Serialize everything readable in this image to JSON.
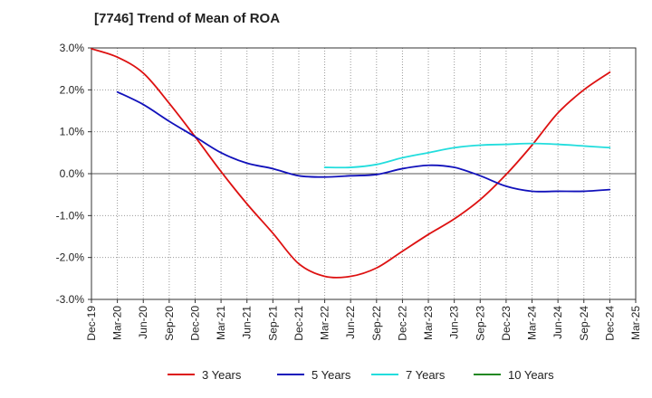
{
  "chart_data": {
    "type": "line",
    "title": "[7746]  Trend of Mean of ROA",
    "x": [
      "Dec-19",
      "Mar-20",
      "Jun-20",
      "Sep-20",
      "Dec-20",
      "Mar-21",
      "Jun-21",
      "Sep-21",
      "Dec-21",
      "Mar-22",
      "Jun-22",
      "Sep-22",
      "Dec-22",
      "Mar-23",
      "Jun-23",
      "Sep-23",
      "Dec-23",
      "Mar-24",
      "Jun-24",
      "Sep-24",
      "Dec-24",
      "Mar-25"
    ],
    "ylim": [
      -3.0,
      3.0
    ],
    "yticks": [
      3.0,
      2.0,
      1.0,
      0.0,
      -1.0,
      -2.0,
      -3.0
    ],
    "ytick_labels": [
      "3.0%",
      "2.0%",
      "1.0%",
      "0.0%",
      "-1.0%",
      "-2.0%",
      "-3.0%"
    ],
    "grid": true,
    "legend_position": "bottom",
    "series": [
      {
        "name": "3 Years",
        "color": "#dd1111",
        "values": [
          2.98,
          2.78,
          2.4,
          1.68,
          0.88,
          0.05,
          -0.72,
          -1.42,
          -2.15,
          -2.45,
          -2.45,
          -2.25,
          -1.85,
          -1.45,
          -1.08,
          -0.62,
          -0.02,
          0.68,
          1.45,
          2.0,
          2.42,
          null
        ]
      },
      {
        "name": "5 Years",
        "color": "#1111bb",
        "values": [
          null,
          1.95,
          1.65,
          1.25,
          0.88,
          0.5,
          0.25,
          0.12,
          -0.05,
          -0.08,
          -0.05,
          -0.02,
          0.12,
          0.2,
          0.15,
          -0.05,
          -0.3,
          -0.42,
          -0.42,
          -0.42,
          -0.38,
          null
        ]
      },
      {
        "name": "7 Years",
        "color": "#22dddd",
        "values": [
          null,
          null,
          null,
          null,
          null,
          null,
          null,
          null,
          null,
          0.15,
          0.15,
          0.22,
          0.38,
          0.5,
          0.62,
          0.68,
          0.7,
          0.72,
          0.7,
          0.66,
          0.62,
          null
        ]
      },
      {
        "name": "10 Years",
        "color": "#228822",
        "values": [
          null,
          null,
          null,
          null,
          null,
          null,
          null,
          null,
          null,
          null,
          null,
          null,
          null,
          null,
          null,
          null,
          null,
          null,
          null,
          null,
          null,
          null
        ]
      }
    ]
  }
}
